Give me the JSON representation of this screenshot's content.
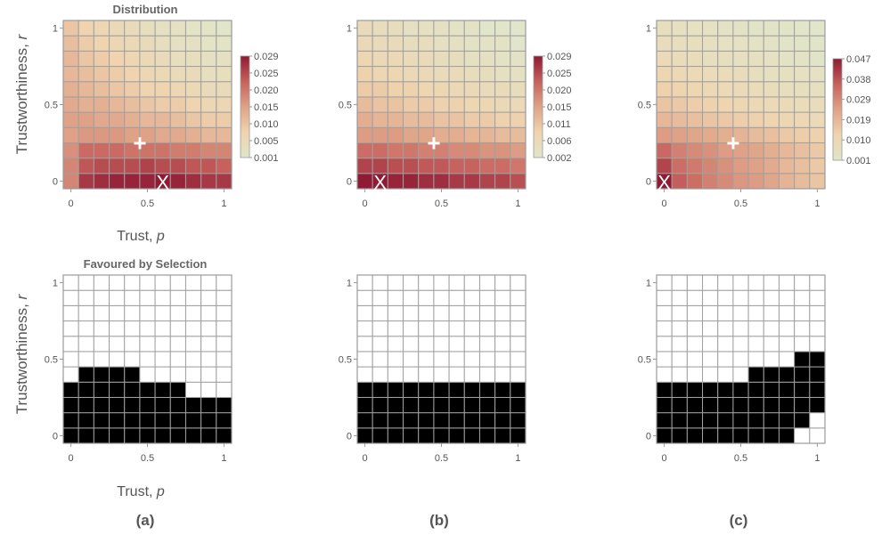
{
  "figure": {
    "row_titles": [
      "Distribution",
      "Favoured by Selection"
    ],
    "ylabel_text": "Trustworthiness, ",
    "ylabel_var": "r",
    "xlabel_text": "Trust, ",
    "xlabel_var": "p",
    "panel_labels": [
      "(a)",
      "(b)",
      "(c)"
    ],
    "x_ticks": [
      "0",
      "0.5",
      "1"
    ],
    "y_ticks": [
      "0",
      "0.5",
      "1"
    ],
    "colors": {
      "grid_line": "#a0a0a0",
      "frame": "#9a9a9a",
      "tick_text": "#555555",
      "label_text": "#555555",
      "title_text": "#666666",
      "favoured": "#000000",
      "not_favoured": "#ffffff",
      "gradient": [
        "#e1e5c9",
        "#efd4af",
        "#dfa287",
        "#c6615c",
        "#8f1a34"
      ],
      "marker": "#ffffff"
    }
  },
  "chart_data": [
    {
      "type": "heatmap",
      "panel": "(a)",
      "title": "Distribution",
      "xlabel": "Trust, p",
      "ylabel": "Trustworthiness, r",
      "grid": "11x11",
      "xlim": [
        0,
        1
      ],
      "ylim": [
        0,
        1
      ],
      "mean_marker": {
        "symbol": "+",
        "p": 0.45,
        "r": 0.25
      },
      "mode_marker": {
        "symbol": "X",
        "p": 0.6,
        "r": 0.0
      },
      "colorbar_ticks": [
        "0.029",
        "0.025",
        "0.020",
        "0.015",
        "0.010",
        "0.005",
        "0.001"
      ],
      "colorbar_range": [
        0.001,
        0.029
      ],
      "rows_r0_to_r1": [
        [
          0.018,
          0.026,
          0.027,
          0.028,
          0.028,
          0.028,
          0.029,
          0.028,
          0.027,
          0.026,
          0.026
        ],
        [
          0.018,
          0.023,
          0.024,
          0.024,
          0.024,
          0.025,
          0.024,
          0.024,
          0.023,
          0.023,
          0.022
        ],
        [
          0.017,
          0.021,
          0.021,
          0.021,
          0.02,
          0.02,
          0.02,
          0.019,
          0.019,
          0.018,
          0.018
        ],
        [
          0.015,
          0.016,
          0.016,
          0.016,
          0.015,
          0.015,
          0.014,
          0.014,
          0.013,
          0.012,
          0.012
        ],
        [
          0.015,
          0.015,
          0.014,
          0.014,
          0.013,
          0.012,
          0.012,
          0.011,
          0.01,
          0.009,
          0.009
        ],
        [
          0.014,
          0.013,
          0.013,
          0.012,
          0.011,
          0.01,
          0.009,
          0.009,
          0.008,
          0.007,
          0.007
        ],
        [
          0.013,
          0.012,
          0.011,
          0.01,
          0.009,
          0.008,
          0.008,
          0.007,
          0.006,
          0.005,
          0.005
        ],
        [
          0.012,
          0.011,
          0.01,
          0.009,
          0.008,
          0.007,
          0.006,
          0.005,
          0.005,
          0.004,
          0.004
        ],
        [
          0.012,
          0.01,
          0.009,
          0.008,
          0.007,
          0.006,
          0.005,
          0.004,
          0.004,
          0.003,
          0.003
        ],
        [
          0.011,
          0.009,
          0.008,
          0.007,
          0.006,
          0.005,
          0.004,
          0.003,
          0.003,
          0.002,
          0.002
        ],
        [
          0.01,
          0.008,
          0.007,
          0.006,
          0.005,
          0.004,
          0.003,
          0.003,
          0.002,
          0.002,
          0.001
        ]
      ]
    },
    {
      "type": "heatmap",
      "panel": "(b)",
      "grid": "11x11",
      "xlim": [
        0,
        1
      ],
      "ylim": [
        0,
        1
      ],
      "mean_marker": {
        "symbol": "+",
        "p": 0.45,
        "r": 0.25
      },
      "mode_marker": {
        "symbol": "X",
        "p": 0.1,
        "r": 0.0
      },
      "colorbar_ticks": [
        "0.029",
        "0.025",
        "0.020",
        "0.015",
        "0.011",
        "0.006",
        "0.002"
      ],
      "colorbar_range": [
        0.002,
        0.029
      ],
      "rows_r0_to_r1": [
        [
          0.029,
          0.029,
          0.028,
          0.028,
          0.027,
          0.027,
          0.026,
          0.026,
          0.025,
          0.025,
          0.024
        ],
        [
          0.025,
          0.025,
          0.024,
          0.024,
          0.023,
          0.023,
          0.022,
          0.022,
          0.021,
          0.021,
          0.02
        ],
        [
          0.021,
          0.021,
          0.02,
          0.02,
          0.019,
          0.019,
          0.018,
          0.018,
          0.017,
          0.017,
          0.016
        ],
        [
          0.016,
          0.016,
          0.016,
          0.015,
          0.015,
          0.014,
          0.014,
          0.013,
          0.013,
          0.012,
          0.012
        ],
        [
          0.014,
          0.013,
          0.013,
          0.012,
          0.012,
          0.011,
          0.011,
          0.01,
          0.01,
          0.009,
          0.009
        ],
        [
          0.012,
          0.011,
          0.011,
          0.01,
          0.01,
          0.009,
          0.009,
          0.008,
          0.008,
          0.007,
          0.007
        ],
        [
          0.01,
          0.01,
          0.009,
          0.009,
          0.008,
          0.008,
          0.007,
          0.007,
          0.006,
          0.006,
          0.005
        ],
        [
          0.009,
          0.008,
          0.008,
          0.007,
          0.007,
          0.006,
          0.006,
          0.005,
          0.005,
          0.004,
          0.004
        ],
        [
          0.008,
          0.007,
          0.007,
          0.006,
          0.006,
          0.005,
          0.005,
          0.004,
          0.004,
          0.003,
          0.003
        ],
        [
          0.007,
          0.006,
          0.006,
          0.005,
          0.005,
          0.004,
          0.004,
          0.003,
          0.003,
          0.003,
          0.002
        ],
        [
          0.006,
          0.005,
          0.005,
          0.004,
          0.004,
          0.004,
          0.003,
          0.003,
          0.002,
          0.002,
          0.002
        ]
      ]
    },
    {
      "type": "heatmap",
      "panel": "(c)",
      "grid": "11x11",
      "xlim": [
        0,
        1
      ],
      "ylim": [
        0,
        1
      ],
      "mean_marker": {
        "symbol": "+",
        "p": 0.45,
        "r": 0.25
      },
      "mode_marker": {
        "symbol": "X",
        "p": 0.0,
        "r": 0.0
      },
      "colorbar_ticks": [
        "0.047",
        "0.038",
        "0.029",
        "0.019",
        "0.010",
        "0.001"
      ],
      "colorbar_range": [
        0.001,
        0.047
      ],
      "rows_r0_to_r1": [
        [
          0.047,
          0.036,
          0.033,
          0.03,
          0.028,
          0.026,
          0.025,
          0.023,
          0.02,
          0.018,
          0.016
        ],
        [
          0.04,
          0.033,
          0.031,
          0.029,
          0.027,
          0.025,
          0.024,
          0.022,
          0.019,
          0.017,
          0.015
        ],
        [
          0.034,
          0.03,
          0.028,
          0.027,
          0.025,
          0.024,
          0.023,
          0.021,
          0.019,
          0.017,
          0.015
        ],
        [
          0.025,
          0.024,
          0.023,
          0.022,
          0.021,
          0.02,
          0.018,
          0.017,
          0.015,
          0.014,
          0.013
        ],
        [
          0.019,
          0.018,
          0.017,
          0.016,
          0.015,
          0.014,
          0.013,
          0.012,
          0.011,
          0.01,
          0.009
        ],
        [
          0.016,
          0.015,
          0.014,
          0.013,
          0.012,
          0.011,
          0.01,
          0.009,
          0.009,
          0.008,
          0.007
        ],
        [
          0.013,
          0.012,
          0.011,
          0.01,
          0.009,
          0.009,
          0.008,
          0.007,
          0.006,
          0.006,
          0.005
        ],
        [
          0.011,
          0.01,
          0.009,
          0.008,
          0.008,
          0.007,
          0.006,
          0.005,
          0.005,
          0.004,
          0.004
        ],
        [
          0.009,
          0.008,
          0.007,
          0.006,
          0.006,
          0.005,
          0.005,
          0.004,
          0.003,
          0.003,
          0.002
        ],
        [
          0.007,
          0.006,
          0.006,
          0.005,
          0.004,
          0.004,
          0.003,
          0.003,
          0.002,
          0.002,
          0.002
        ],
        [
          0.006,
          0.005,
          0.004,
          0.004,
          0.003,
          0.003,
          0.002,
          0.002,
          0.002,
          0.001,
          0.001
        ]
      ]
    },
    {
      "type": "heatmap",
      "panel": "(a)",
      "title": "Favoured by Selection",
      "xlabel": "Trust, p",
      "ylabel": "Trustworthiness, r",
      "grid": "11x11",
      "xlim": [
        0,
        1
      ],
      "ylim": [
        0,
        1
      ],
      "values_legend": "1 = favoured (black), 0 = not favoured (white)",
      "rows_r0_to_r1": [
        [
          1,
          1,
          1,
          1,
          1,
          1,
          1,
          1,
          1,
          1,
          1
        ],
        [
          1,
          1,
          1,
          1,
          1,
          1,
          1,
          1,
          1,
          1,
          1
        ],
        [
          1,
          1,
          1,
          1,
          1,
          1,
          1,
          1,
          1,
          1,
          1
        ],
        [
          1,
          1,
          1,
          1,
          1,
          1,
          1,
          1,
          0,
          0,
          0
        ],
        [
          0,
          1,
          1,
          1,
          1,
          0,
          0,
          0,
          0,
          0,
          0
        ],
        [
          0,
          0,
          0,
          0,
          0,
          0,
          0,
          0,
          0,
          0,
          0
        ],
        [
          0,
          0,
          0,
          0,
          0,
          0,
          0,
          0,
          0,
          0,
          0
        ],
        [
          0,
          0,
          0,
          0,
          0,
          0,
          0,
          0,
          0,
          0,
          0
        ],
        [
          0,
          0,
          0,
          0,
          0,
          0,
          0,
          0,
          0,
          0,
          0
        ],
        [
          0,
          0,
          0,
          0,
          0,
          0,
          0,
          0,
          0,
          0,
          0
        ],
        [
          0,
          0,
          0,
          0,
          0,
          0,
          0,
          0,
          0,
          0,
          0
        ]
      ]
    },
    {
      "type": "heatmap",
      "panel": "(b)",
      "grid": "11x11",
      "xlim": [
        0,
        1
      ],
      "ylim": [
        0,
        1
      ],
      "rows_r0_to_r1": [
        [
          1,
          1,
          1,
          1,
          1,
          1,
          1,
          1,
          1,
          1,
          1
        ],
        [
          1,
          1,
          1,
          1,
          1,
          1,
          1,
          1,
          1,
          1,
          1
        ],
        [
          1,
          1,
          1,
          1,
          1,
          1,
          1,
          1,
          1,
          1,
          1
        ],
        [
          1,
          1,
          1,
          1,
          1,
          1,
          1,
          1,
          1,
          1,
          1
        ],
        [
          0,
          0,
          0,
          0,
          0,
          0,
          0,
          0,
          0,
          0,
          0
        ],
        [
          0,
          0,
          0,
          0,
          0,
          0,
          0,
          0,
          0,
          0,
          0
        ],
        [
          0,
          0,
          0,
          0,
          0,
          0,
          0,
          0,
          0,
          0,
          0
        ],
        [
          0,
          0,
          0,
          0,
          0,
          0,
          0,
          0,
          0,
          0,
          0
        ],
        [
          0,
          0,
          0,
          0,
          0,
          0,
          0,
          0,
          0,
          0,
          0
        ],
        [
          0,
          0,
          0,
          0,
          0,
          0,
          0,
          0,
          0,
          0,
          0
        ],
        [
          0,
          0,
          0,
          0,
          0,
          0,
          0,
          0,
          0,
          0,
          0
        ]
      ]
    },
    {
      "type": "heatmap",
      "panel": "(c)",
      "grid": "11x11",
      "xlim": [
        0,
        1
      ],
      "ylim": [
        0,
        1
      ],
      "rows_r0_to_r1": [
        [
          1,
          1,
          1,
          1,
          1,
          1,
          1,
          1,
          1,
          0,
          0
        ],
        [
          1,
          1,
          1,
          1,
          1,
          1,
          1,
          1,
          1,
          1,
          0
        ],
        [
          1,
          1,
          1,
          1,
          1,
          1,
          1,
          1,
          1,
          1,
          1
        ],
        [
          1,
          1,
          1,
          1,
          1,
          1,
          1,
          1,
          1,
          1,
          1
        ],
        [
          0,
          0,
          0,
          0,
          0,
          0,
          1,
          1,
          1,
          1,
          1
        ],
        [
          0,
          0,
          0,
          0,
          0,
          0,
          0,
          0,
          0,
          1,
          1
        ],
        [
          0,
          0,
          0,
          0,
          0,
          0,
          0,
          0,
          0,
          0,
          0
        ],
        [
          0,
          0,
          0,
          0,
          0,
          0,
          0,
          0,
          0,
          0,
          0
        ],
        [
          0,
          0,
          0,
          0,
          0,
          0,
          0,
          0,
          0,
          0,
          0
        ],
        [
          0,
          0,
          0,
          0,
          0,
          0,
          0,
          0,
          0,
          0,
          0
        ],
        [
          0,
          0,
          0,
          0,
          0,
          0,
          0,
          0,
          0,
          0,
          0
        ]
      ]
    }
  ]
}
